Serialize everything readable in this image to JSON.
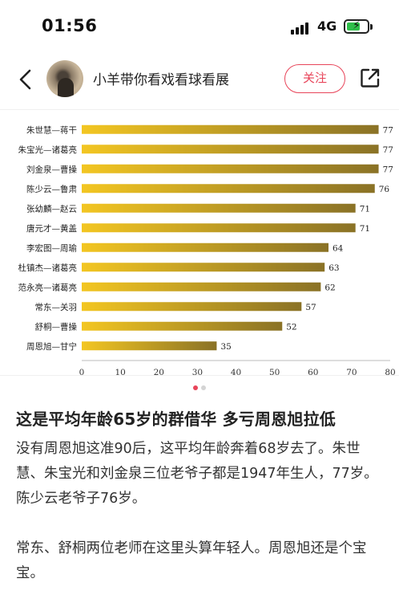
{
  "status_bar": {
    "time": "01:56",
    "network": "4G",
    "battery_color": "#2fbf4a"
  },
  "header": {
    "back_icon": "chevron-left-icon",
    "author_name": "小羊带你看戏看球看展",
    "follow_label": "关注",
    "share_icon": "share-icon",
    "accent": "#e8455a"
  },
  "chart_data": {
    "type": "bar",
    "orientation": "horizontal",
    "categories": [
      "朱世慧—蒋干",
      "朱宝光—诸葛亮",
      "刘金泉—曹操",
      "陈少云—鲁肃",
      "张幼麟—赵云",
      "唐元才—黄盖",
      "李宏图—周瑜",
      "杜镇杰—诸葛亮",
      "范永亮—诸葛亮",
      "常东—关羽",
      "舒桐—曹操",
      "周恩旭—甘宁"
    ],
    "values": [
      77,
      77,
      77,
      76,
      71,
      71,
      64,
      63,
      62,
      57,
      52,
      35
    ],
    "xlim": [
      0,
      80
    ],
    "xticks": [
      0,
      10,
      20,
      30,
      40,
      50,
      60,
      70,
      80
    ],
    "data_labels": true,
    "grid": false,
    "bar_color_start": "#f3c622",
    "bar_color_end": "#8a7226",
    "title": "",
    "xlabel": "",
    "ylabel": ""
  },
  "carousel": {
    "active_color": "#e8455a",
    "inactive_color": "#d4d4d4",
    "count": 2,
    "active_index": 0
  },
  "article": {
    "title": "这是平均年龄65岁的群借华 多亏周恩旭拉低",
    "paragraphs": [
      "没有周恩旭这准90后，这平均年龄奔着68岁去了。朱世慧、朱宝光和刘金泉三位老爷子都是1947年生人，77岁。陈少云老爷子76岁。",
      "常东、舒桐两位老师在这里头算年轻人。周恩旭还是个宝宝。"
    ]
  }
}
